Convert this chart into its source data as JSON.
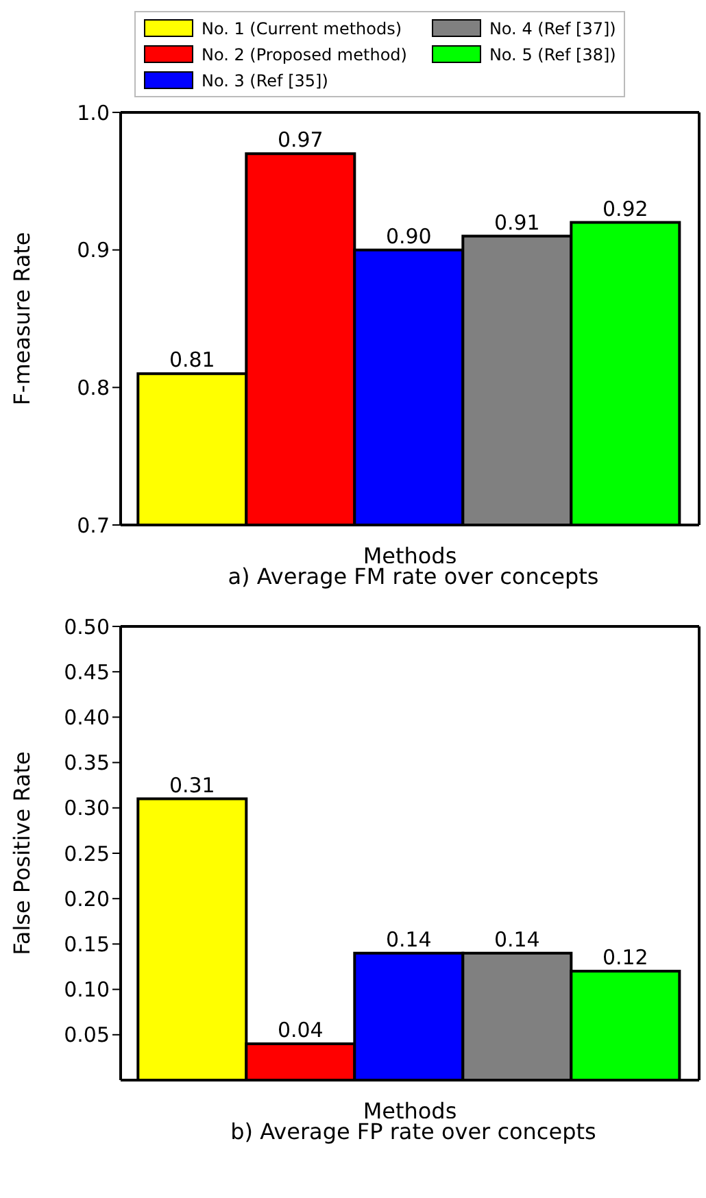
{
  "chart_data": [
    {
      "type": "bar",
      "categories": [
        null
      ],
      "xlabel": "Methods",
      "ylabel": "F-measure Rate",
      "annotations": [
        "a) Average FM rate over concepts"
      ],
      "ylim": [
        0.7,
        1.0
      ],
      "yticks": [
        0.7,
        0.8,
        0.9,
        {
          "value": 1.0,
          "label": "1.0"
        }
      ],
      "legend": "top",
      "grid": false,
      "series": [
        {
          "name": "No. 1 (Current methods)",
          "color": "#ffff00",
          "values": [
            0.81
          ],
          "value_labels": [
            "0.81"
          ]
        },
        {
          "name": "No. 2 (Proposed method)",
          "color": "#ff0000",
          "values": [
            0.97
          ],
          "value_labels": [
            "0.97"
          ]
        },
        {
          "name": "No. 3 (Ref [35])",
          "color": "#0000ff",
          "values": [
            0.9
          ],
          "value_labels": [
            "0.90"
          ]
        },
        {
          "name": "No. 4 (Ref [37])",
          "color": "#808080",
          "values": [
            0.91
          ],
          "value_labels": [
            "0.91"
          ]
        },
        {
          "name": "No. 5 (Ref [38])",
          "color": "#00ff00",
          "values": [
            0.92
          ],
          "value_labels": [
            "0.92"
          ]
        }
      ]
    },
    {
      "type": "bar",
      "categories": [
        null
      ],
      "xlabel": "Methods",
      "ylabel": "False Positive Rate",
      "annotations": [
        "b) Average FP rate over concepts"
      ],
      "ylim": [
        0,
        0.5
      ],
      "yticks": [
        0.05,
        {
          "value": 0.1,
          "label": "0.10"
        },
        0.15,
        {
          "value": 0.2,
          "label": "0.20"
        },
        0.25,
        {
          "value": 0.3,
          "label": "0.30"
        },
        0.35,
        {
          "value": 0.4,
          "label": "0.40"
        },
        0.45,
        {
          "value": 0.5,
          "label": "0.50"
        }
      ],
      "grid": false,
      "series": [
        {
          "color": "#ffff00",
          "values": [
            0.31
          ],
          "value_labels": [
            "0.31"
          ]
        },
        {
          "color": "#ff0000",
          "values": [
            0.04
          ],
          "value_labels": [
            "0.04"
          ]
        },
        {
          "color": "#0000ff",
          "values": [
            0.14
          ],
          "value_labels": [
            "0.14"
          ]
        },
        {
          "color": "#808080",
          "values": [
            0.14
          ],
          "value_labels": [
            "0.14"
          ]
        },
        {
          "color": "#00ff00",
          "values": [
            0.12
          ],
          "value_labels": [
            "0.12"
          ]
        }
      ]
    }
  ]
}
